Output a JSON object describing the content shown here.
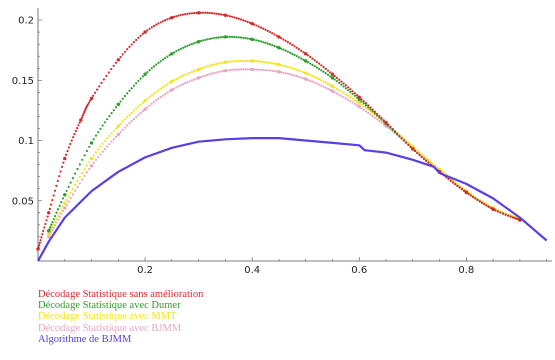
{
  "chart_data": {
    "type": "scatter",
    "title": "",
    "xlabel": "",
    "ylabel": "",
    "xlim": [
      0,
      0.96
    ],
    "ylim": [
      0,
      0.21
    ],
    "x_ticks": [
      0.2,
      0.4,
      0.6,
      0.8
    ],
    "x_tick_labels": [
      "0.2",
      "0.4",
      "0.6",
      "0.8"
    ],
    "y_ticks": [
      0.05,
      0.1,
      0.15,
      0.2
    ],
    "y_tick_labels": [
      "0.05",
      "0.1",
      "0.15",
      "0.2"
    ],
    "grid": false,
    "legend_position": "bottom-left",
    "series": [
      {
        "name": "Décodage Statistique sans amélioration",
        "color": "#d42a2a",
        "style": "dots",
        "x": [
          0.0,
          0.02,
          0.05,
          0.08,
          0.1,
          0.15,
          0.2,
          0.25,
          0.3,
          0.35,
          0.4,
          0.45,
          0.5,
          0.55,
          0.6,
          0.65,
          0.7,
          0.75,
          0.8,
          0.85,
          0.9
        ],
        "y": [
          0.01,
          0.04,
          0.085,
          0.117,
          0.135,
          0.167,
          0.19,
          0.202,
          0.206,
          0.204,
          0.197,
          0.186,
          0.172,
          0.155,
          0.136,
          0.115,
          0.093,
          0.074,
          0.057,
          0.043,
          0.034
        ]
      },
      {
        "name": "Décodage Statistique avec Dumer",
        "color": "#2e9e2e",
        "style": "dots",
        "x": [
          0.02,
          0.05,
          0.1,
          0.15,
          0.2,
          0.25,
          0.3,
          0.35,
          0.4,
          0.45,
          0.5,
          0.55,
          0.6,
          0.65,
          0.7,
          0.75,
          0.8,
          0.85,
          0.9
        ],
        "y": [
          0.025,
          0.055,
          0.098,
          0.13,
          0.155,
          0.172,
          0.182,
          0.186,
          0.184,
          0.177,
          0.166,
          0.152,
          0.134,
          0.114,
          0.093,
          0.074,
          0.057,
          0.043,
          0.034
        ]
      },
      {
        "name": "Décodage Statistique avec MMT",
        "color": "#f2e41f",
        "style": "dots",
        "x": [
          0.02,
          0.05,
          0.1,
          0.15,
          0.2,
          0.25,
          0.3,
          0.35,
          0.4,
          0.45,
          0.5,
          0.55,
          0.6,
          0.65,
          0.7,
          0.75,
          0.8,
          0.85,
          0.9
        ],
        "y": [
          0.022,
          0.048,
          0.085,
          0.112,
          0.133,
          0.149,
          0.159,
          0.165,
          0.166,
          0.163,
          0.156,
          0.145,
          0.131,
          0.114,
          0.095,
          0.076,
          0.058,
          0.044,
          0.035
        ]
      },
      {
        "name": "Décodage Statistique avec BJMM",
        "color": "#e8a6c4",
        "style": "dots",
        "x": [
          0.02,
          0.05,
          0.1,
          0.15,
          0.2,
          0.25,
          0.3,
          0.35,
          0.4,
          0.45,
          0.5,
          0.55,
          0.6,
          0.65,
          0.7,
          0.75,
          0.8,
          0.85,
          0.9
        ],
        "y": [
          0.02,
          0.044,
          0.079,
          0.105,
          0.126,
          0.142,
          0.152,
          0.158,
          0.159,
          0.157,
          0.151,
          0.141,
          0.128,
          0.112,
          0.094,
          0.076,
          0.058,
          0.044,
          0.035
        ]
      },
      {
        "name": "Algorithme de BJMM",
        "color": "#5a3fe0",
        "style": "line",
        "x": [
          0.0,
          0.02,
          0.05,
          0.1,
          0.15,
          0.2,
          0.25,
          0.3,
          0.35,
          0.4,
          0.45,
          0.5,
          0.55,
          0.6,
          0.61,
          0.65,
          0.7,
          0.74,
          0.75,
          0.8,
          0.85,
          0.9,
          0.95
        ],
        "y": [
          0.0,
          0.016,
          0.036,
          0.058,
          0.074,
          0.086,
          0.094,
          0.099,
          0.101,
          0.102,
          0.102,
          0.1,
          0.098,
          0.096,
          0.092,
          0.09,
          0.084,
          0.078,
          0.073,
          0.064,
          0.052,
          0.036,
          0.017
        ]
      }
    ]
  }
}
